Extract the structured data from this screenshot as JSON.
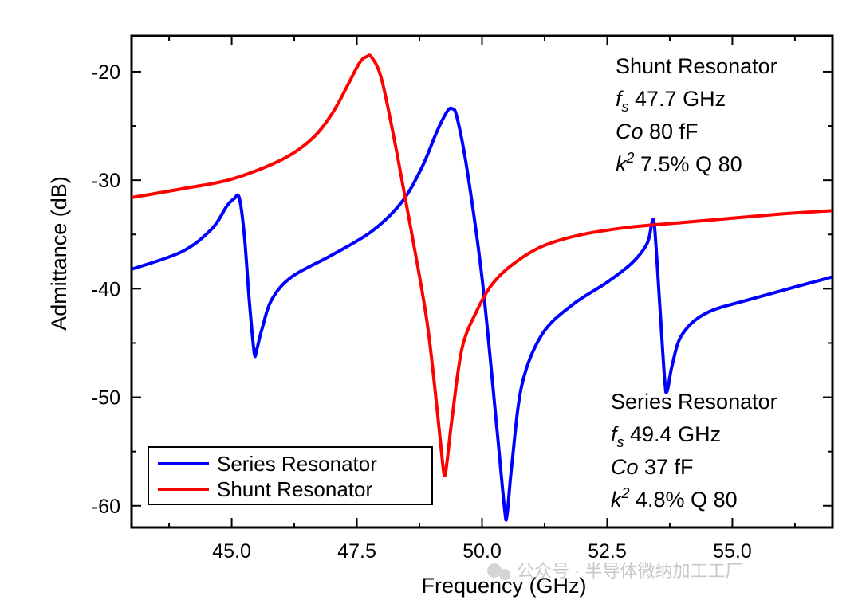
{
  "chart_data": {
    "type": "line",
    "xlabel": "Frequency (GHz)",
    "ylabel": "Admittance (dB)",
    "xlim": [
      43.0,
      57.0
    ],
    "ylim": [
      -62.0,
      -16.7
    ],
    "x_ticks": [
      45.0,
      47.5,
      50.0,
      52.5,
      55.0
    ],
    "x_tick_labels": [
      "45.0",
      "47.5",
      "50.0",
      "52.5",
      "55.0"
    ],
    "y_ticks": [
      -20,
      -30,
      -40,
      -50,
      -60
    ],
    "y_tick_labels": [
      "-20",
      "-30",
      "-40",
      "-50",
      "-60"
    ],
    "grid": false,
    "legend_position": "bottom-left",
    "series": [
      {
        "name": "Series Resonator",
        "color": "#0000ff",
        "x": [
          43.0,
          44.0,
          44.6,
          44.9,
          45.05,
          45.15,
          45.25,
          45.35,
          45.45,
          45.5,
          45.6,
          45.8,
          46.2,
          47.0,
          47.8,
          48.4,
          48.8,
          49.1,
          49.3,
          49.4,
          49.5,
          49.7,
          50.0,
          50.3,
          50.45,
          50.5,
          50.6,
          50.8,
          51.2,
          51.8,
          52.5,
          53.0,
          53.3,
          53.4,
          53.45,
          53.55,
          53.65,
          53.7,
          53.8,
          54.0,
          54.5,
          55.5,
          57.0
        ],
        "y": [
          -38.2,
          -36.6,
          -34.5,
          -32.4,
          -31.7,
          -31.6,
          -35.0,
          -41.0,
          -45.9,
          -45.6,
          -43.8,
          -41.0,
          -38.9,
          -36.9,
          -34.7,
          -32.0,
          -28.8,
          -25.5,
          -23.7,
          -23.4,
          -24.2,
          -29.0,
          -39.0,
          -53.0,
          -60.3,
          -60.8,
          -56.0,
          -48.8,
          -44.2,
          -41.5,
          -39.4,
          -37.6,
          -35.8,
          -33.8,
          -34.5,
          -41.5,
          -48.5,
          -49.4,
          -47.0,
          -44.2,
          -42.2,
          -40.8,
          -38.9
        ]
      },
      {
        "name": "Shunt Resonator",
        "color": "#ff0000",
        "x": [
          43.0,
          44.0,
          45.0,
          46.0,
          46.6,
          47.0,
          47.3,
          47.55,
          47.7,
          47.8,
          48.0,
          48.3,
          48.6,
          48.9,
          49.1,
          49.2,
          49.25,
          49.3,
          49.4,
          49.6,
          49.9,
          50.2,
          50.6,
          51.2,
          52.0,
          53.0,
          54.0,
          55.0,
          56.0,
          57.0
        ],
        "y": [
          -31.6,
          -30.8,
          -29.9,
          -28.1,
          -26.2,
          -23.9,
          -21.4,
          -19.2,
          -18.6,
          -18.7,
          -20.8,
          -27.5,
          -35.0,
          -43.0,
          -51.0,
          -55.5,
          -57.2,
          -56.0,
          -52.0,
          -45.5,
          -42.0,
          -39.6,
          -37.8,
          -36.1,
          -35.0,
          -34.3,
          -33.9,
          -33.5,
          -33.1,
          -32.8
        ]
      }
    ],
    "annotations": [
      {
        "lines": [
          {
            "prefix": "",
            "prefix_sup": "",
            "prefix_sub": "",
            "text": "Shunt Resonator"
          },
          {
            "prefix": "f",
            "prefix_sub": "s",
            "prefix_sup": "",
            "text": " 47.7 GHz"
          },
          {
            "prefix": "Co",
            "prefix_sub": "",
            "prefix_sup": "",
            "text": " 80 fF"
          },
          {
            "prefix": "k",
            "prefix_sub": "",
            "prefix_sup": "2",
            "text": " 7.5% Q 80"
          }
        ]
      },
      {
        "lines": [
          {
            "prefix": "",
            "prefix_sup": "",
            "prefix_sub": "",
            "text": "Series Resonator"
          },
          {
            "prefix": "f",
            "prefix_sub": "s",
            "prefix_sup": "",
            "text": " 49.4 GHz"
          },
          {
            "prefix": "Co",
            "prefix_sub": "",
            "prefix_sup": "",
            "text": " 37 fF"
          },
          {
            "prefix": "k",
            "prefix_sub": "",
            "prefix_sup": "2",
            "text": " 4.8% Q 80"
          }
        ]
      }
    ]
  },
  "watermark": {
    "text": "公众号 · 半导体微纳加工工厂"
  }
}
